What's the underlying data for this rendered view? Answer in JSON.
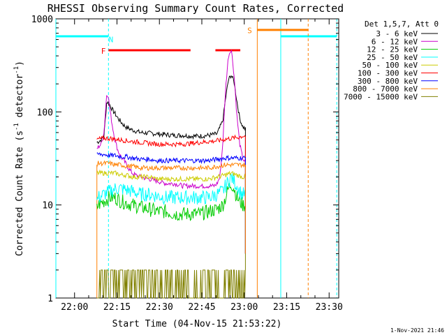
{
  "chart_data": {
    "type": "line",
    "title": "RHESSI Observing Summary Count Rates, Corrected",
    "xlabel": "Start Time (04-Nov-15 21:53:22)",
    "ylabel": "Corrected Count Rate (s⁻¹ detector⁻¹)",
    "ylabel_base": "Corrected Count Rate (s",
    "ylabel_mid": " detector",
    "ylabel_end": ")",
    "ylabel_exp": "-1",
    "x_units": "minutes after 21:53:22",
    "xlim": [
      0,
      100
    ],
    "ylim": [
      1,
      1000
    ],
    "yscale": "log",
    "x_ticks": [
      {
        "v": 6.6,
        "label": "22:00"
      },
      {
        "v": 21.6,
        "label": "22:15"
      },
      {
        "v": 36.6,
        "label": "22:30"
      },
      {
        "v": 51.6,
        "label": "22:45"
      },
      {
        "v": 66.6,
        "label": "23:00"
      },
      {
        "v": 81.6,
        "label": "23:15"
      },
      {
        "v": 96.6,
        "label": "23:30"
      }
    ],
    "y_ticks": [
      {
        "v": 1,
        "label": "1"
      },
      {
        "v": 10,
        "label": "10"
      },
      {
        "v": 100,
        "label": "100"
      },
      {
        "v": 1000,
        "label": "1000"
      }
    ],
    "legend_header": "Det 1,5,7, Att 0",
    "legend_position": "right",
    "series": [
      {
        "name": "3 - 6 keV",
        "color": "#000000",
        "x": [
          14.5,
          15,
          16,
          17,
          18,
          19,
          20,
          21,
          22,
          23,
          24,
          25,
          27,
          30,
          33,
          36,
          39,
          42,
          45,
          48,
          51,
          54,
          57,
          59,
          60,
          61,
          62,
          63,
          64,
          65,
          66,
          67
        ],
        "y": [
          47,
          48,
          50,
          55,
          130,
          120,
          105,
          95,
          85,
          78,
          72,
          68,
          64,
          60,
          59,
          58,
          57,
          56,
          56,
          55,
          55,
          56,
          58,
          80,
          140,
          220,
          250,
          210,
          130,
          85,
          70,
          65
        ]
      },
      {
        "name": "6 - 12 keV",
        "color": "#cc00cc",
        "x": [
          14.5,
          15,
          16,
          17,
          18,
          18.5,
          19,
          20,
          21,
          22,
          23,
          24,
          25,
          26,
          27,
          28,
          30,
          33,
          36,
          39,
          42,
          45,
          48,
          51,
          54,
          56,
          57,
          58,
          59,
          60,
          61,
          62,
          63,
          64,
          65,
          66,
          67
        ],
        "y": [
          40,
          42,
          45,
          60,
          160,
          150,
          110,
          70,
          48,
          38,
          33,
          30,
          27,
          24,
          22,
          21,
          20,
          19,
          18,
          17,
          17,
          16,
          16,
          16,
          16,
          16,
          17,
          20,
          45,
          180,
          400,
          480,
          250,
          90,
          45,
          32,
          28
        ]
      },
      {
        "name": "12 - 25 keV",
        "color": "#00cc00",
        "x": [
          14.5,
          15,
          17,
          19,
          21,
          23,
          25,
          27,
          30,
          33,
          36,
          39,
          42,
          45,
          48,
          51,
          54,
          57,
          59,
          60,
          61,
          62,
          63,
          64,
          65,
          66,
          67
        ],
        "y": [
          9,
          10,
          11,
          12,
          12,
          11,
          10.5,
          10,
          9.5,
          9,
          8.5,
          8.5,
          8,
          8,
          8,
          8,
          8.5,
          9,
          10,
          12,
          15,
          17,
          15,
          12,
          11,
          10,
          10
        ]
      },
      {
        "name": "25 - 50 keV",
        "color": "#00ffff",
        "x": [
          14.5,
          15,
          17,
          19,
          21,
          23,
          25,
          27,
          30,
          33,
          36,
          39,
          42,
          45,
          48,
          51,
          54,
          57,
          59,
          60,
          61,
          62,
          63,
          64,
          65,
          66,
          67
        ],
        "y": [
          11,
          12,
          13,
          14,
          15,
          15,
          14.5,
          14,
          13,
          13,
          12.5,
          12,
          12,
          12,
          12,
          12,
          12,
          13,
          14,
          16,
          18,
          20,
          18,
          16,
          14,
          13,
          13
        ]
      },
      {
        "name": "50 - 100 keV",
        "color": "#cccc00",
        "x": [
          14.5,
          15,
          17,
          19,
          21,
          23,
          25,
          27,
          30,
          33,
          36,
          39,
          42,
          45,
          48,
          51,
          54,
          57,
          60,
          62,
          64,
          66,
          67
        ],
        "y": [
          22,
          22,
          22,
          22,
          22,
          21,
          21,
          20,
          20,
          20,
          19,
          19,
          19,
          19,
          19,
          19,
          19,
          20,
          21,
          22,
          21,
          20,
          20
        ]
      },
      {
        "name": "100 - 300 keV",
        "color": "#ff0000",
        "x": [
          14.5,
          15,
          17,
          19,
          21,
          23,
          25,
          27,
          30,
          33,
          36,
          39,
          42,
          45,
          48,
          51,
          54,
          57,
          60,
          62,
          64,
          66,
          67
        ],
        "y": [
          50,
          51,
          52,
          52,
          51,
          50,
          49,
          48,
          47,
          46,
          45,
          45,
          45,
          45,
          46,
          47,
          48,
          49,
          51,
          52,
          53,
          55,
          55
        ]
      },
      {
        "name": "300 - 800 keV",
        "color": "#0000ff",
        "x": [
          14.5,
          15,
          17,
          19,
          21,
          23,
          25,
          27,
          30,
          33,
          36,
          39,
          42,
          45,
          48,
          51,
          54,
          57,
          60,
          62,
          64,
          66,
          67
        ],
        "y": [
          34,
          35,
          35,
          34,
          34,
          33,
          33,
          32,
          31,
          31,
          30,
          30,
          30,
          30,
          30,
          30,
          30,
          31,
          32,
          32,
          32,
          32,
          32
        ]
      },
      {
        "name": "800 - 7000 keV",
        "color": "#ff8000",
        "x": [
          14.5,
          15,
          17,
          19,
          21,
          23,
          25,
          27,
          30,
          33,
          36,
          39,
          42,
          45,
          48,
          51,
          54,
          57,
          60,
          62,
          64,
          66,
          67
        ],
        "y": [
          27,
          28,
          28,
          28,
          27,
          27,
          26,
          26,
          25,
          25,
          25,
          25,
          25,
          25,
          25,
          25,
          25,
          26,
          27,
          27,
          27,
          27,
          27
        ]
      },
      {
        "name": "7000 - 15000 keV",
        "color": "#808000",
        "x": [
          14.5,
          15,
          17,
          19,
          21,
          23,
          25,
          27,
          30,
          33,
          36,
          39,
          42,
          45,
          48,
          51,
          54,
          57,
          60,
          62,
          64,
          66,
          67
        ],
        "y": [
          1.7,
          1.6,
          1.5,
          1.4,
          1.3,
          1.5,
          1.6,
          1.5,
          1.4,
          1.2,
          1.3,
          1.4,
          1.2,
          1.3,
          1.4,
          1.2,
          1.5,
          1.6,
          1.5,
          1.4,
          1.5,
          1.6,
          1.5
        ]
      }
    ],
    "annotations": [
      {
        "label": "N",
        "x": 19.5,
        "y": 600,
        "color": "#00ffff"
      },
      {
        "label": "F",
        "x": 16.8,
        "y": 450,
        "color": "#ff0000"
      },
      {
        "label": "S",
        "x": 68.5,
        "y": 750,
        "color": "#ff8000"
      }
    ],
    "night_intervals": [
      {
        "x0": 0,
        "x1": 18.6,
        "solid_x": 0,
        "dash_x": 18.6
      },
      {
        "x0": 79.5,
        "x1": 99.3,
        "solid_x": 79.5,
        "dash_x": 99.3
      }
    ],
    "flare_intervals": [
      {
        "x0": 18.6,
        "x1": 47.6
      },
      {
        "x0": 56.4,
        "x1": 65.2
      }
    ],
    "saa_intervals": [
      {
        "x0": 71.2,
        "x1": 89.2,
        "solid_x": 71.2,
        "dash_x": 89.2
      }
    ],
    "gap": {
      "x0": 67.2,
      "x1": 100
    },
    "footer_timestamp": "1-Nov-2021 21:46"
  }
}
